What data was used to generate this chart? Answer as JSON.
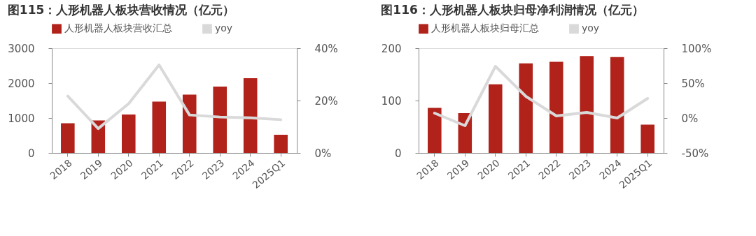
{
  "chart_data": [
    {
      "type": "bar",
      "title": "图115：人形机器人板块营收情况（亿元）",
      "categories": [
        "2018",
        "2019",
        "2020",
        "2021",
        "2022",
        "2023",
        "2024",
        "2025Q1"
      ],
      "legend": "top",
      "grid": false,
      "series": [
        {
          "name": "人形机器人板块营收汇总",
          "type": "bar",
          "color": "#b0221a",
          "values": [
            850,
            930,
            1100,
            1470,
            1670,
            1900,
            2140,
            520
          ]
        },
        {
          "name": "yoy",
          "type": "line",
          "axis": "y2",
          "color": "#d9d9d9",
          "values": [
            21.7,
            9.3,
            18.8,
            33.6,
            14.5,
            13.7,
            13.4,
            12.7
          ]
        }
      ],
      "ylim": [
        0,
        3000
      ],
      "yticks": [
        0,
        1000,
        2000,
        3000
      ],
      "y2lim": [
        0,
        40
      ],
      "y2ticks": [
        {
          "value": 0,
          "label": "0%"
        },
        {
          "value": 20,
          "label": "20%"
        },
        {
          "value": 40,
          "label": "40%"
        }
      ]
    },
    {
      "type": "bar",
      "title": "图116：人形机器人板块归母净利润情况（亿元）",
      "categories": [
        "2018",
        "2019",
        "2020",
        "2021",
        "2022",
        "2023",
        "2024",
        "2025Q1"
      ],
      "legend": "top",
      "grid": false,
      "series": [
        {
          "name": "人形机器人板块归母汇总",
          "type": "bar",
          "color": "#b0221a",
          "values": [
            86,
            76,
            131,
            171,
            174,
            185,
            183,
            54
          ]
        },
        {
          "name": "yoy",
          "type": "line",
          "axis": "y2",
          "color": "#d9d9d9",
          "values": [
            7,
            -11,
            74,
            31,
            3,
            8,
            0,
            28
          ]
        }
      ],
      "ylim": [
        0,
        200
      ],
      "yticks": [
        0,
        100,
        200
      ],
      "y2lim": [
        -50,
        100
      ],
      "y2ticks": [
        {
          "value": -50,
          "label": "-50%"
        },
        {
          "value": 0,
          "label": "0%"
        },
        {
          "value": 50,
          "label": "50%"
        },
        {
          "value": 100,
          "label": "100%"
        }
      ]
    }
  ]
}
